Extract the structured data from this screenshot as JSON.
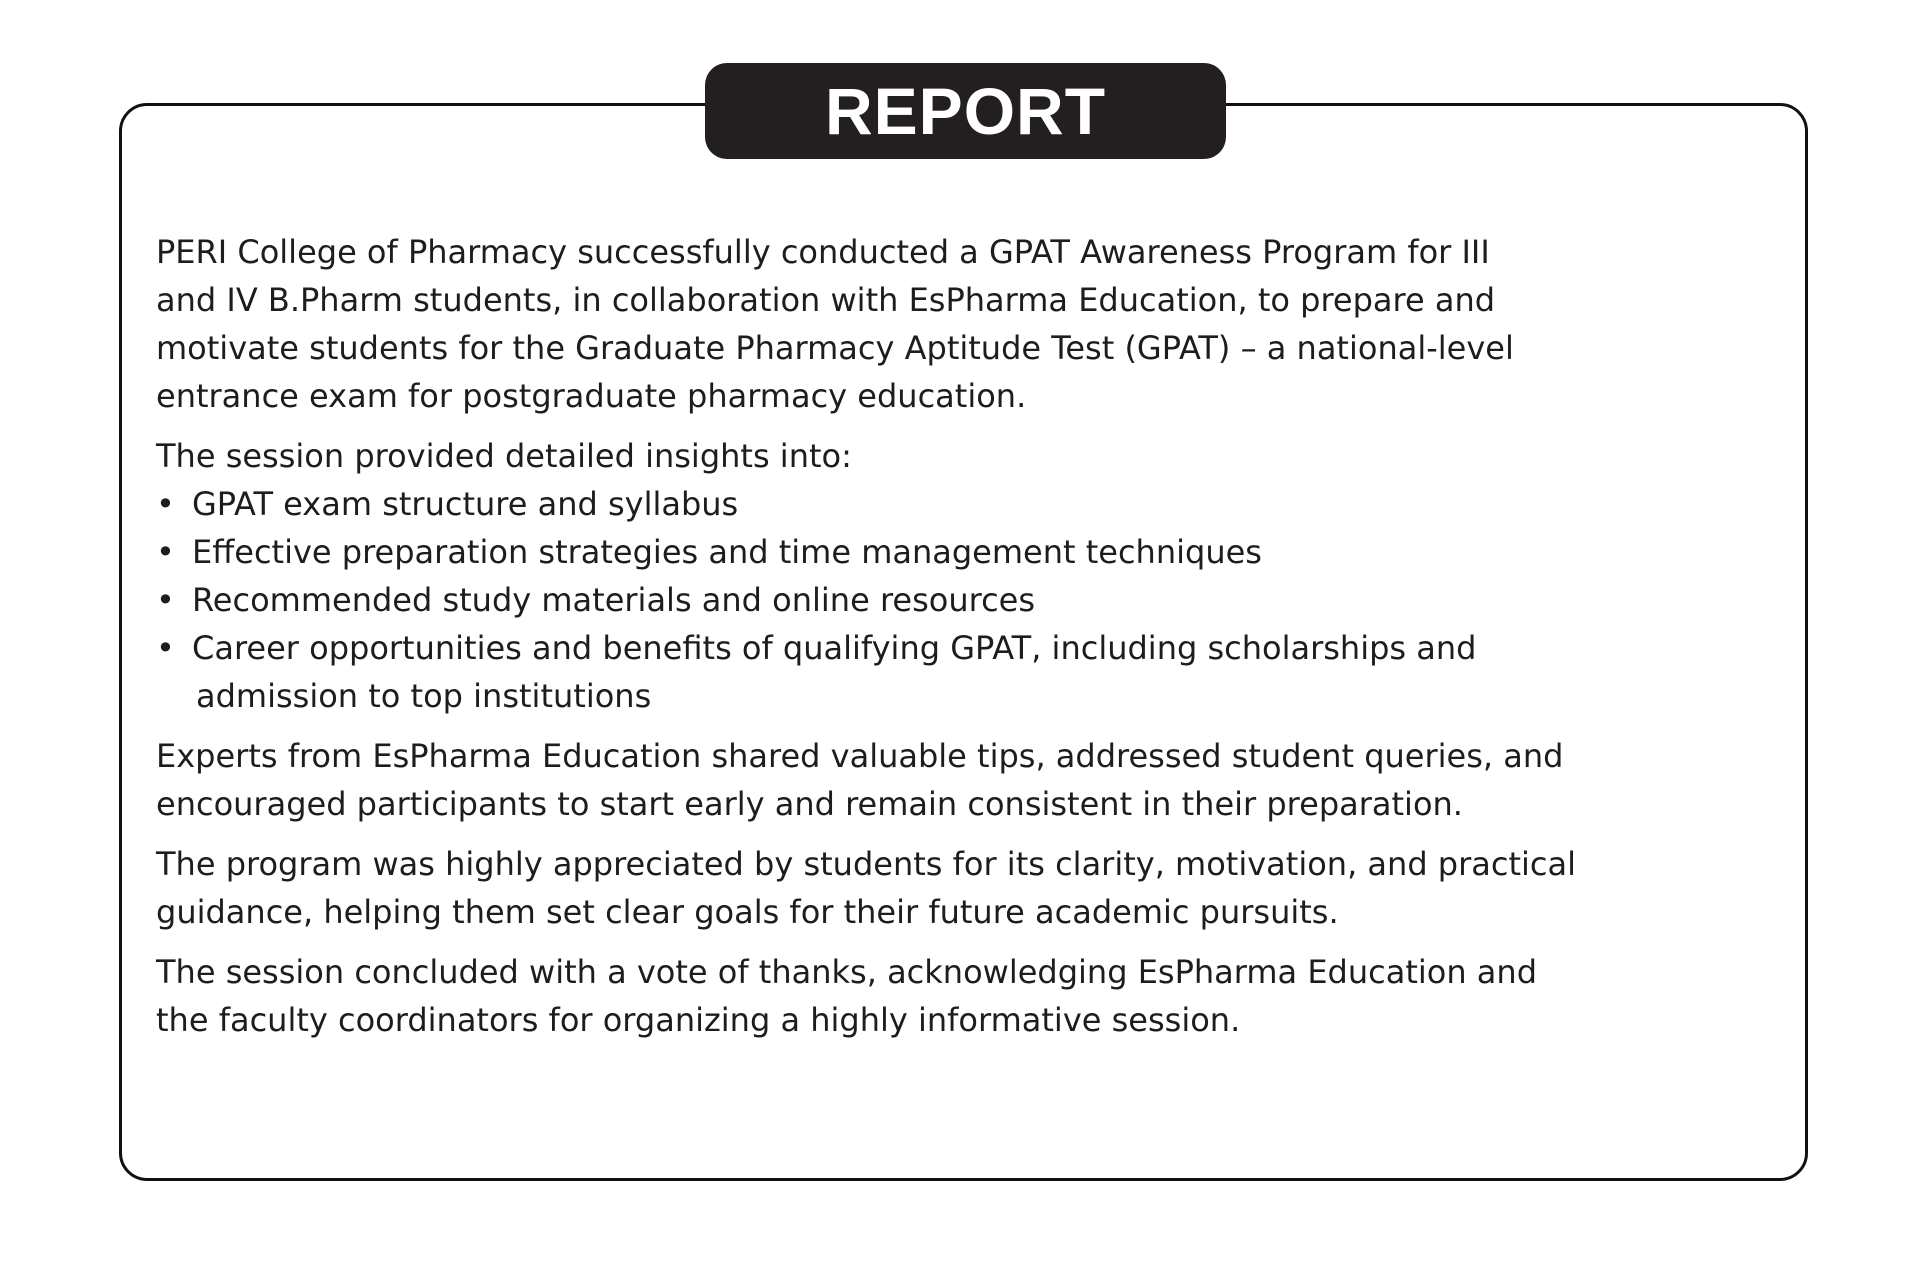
{
  "header": {
    "title": "REPORT"
  },
  "body": {
    "intro_lines": [
      "PERI College of Pharmacy successfully conducted a GPAT Awareness Program for III",
      "and IV B.Pharm students, in collaboration with EsPharma Education, to prepare and",
      "motivate students for the Graduate Pharmacy Aptitude Test (GPAT) – a national-level",
      "entrance exam for postgraduate pharmacy education."
    ],
    "insights_heading": "The session provided detailed insights into:",
    "bullets": [
      {
        "text": "GPAT exam structure and syllabus"
      },
      {
        "text": "Effective preparation strategies and time management techniques"
      },
      {
        "text": "Recommended study materials and online resources"
      },
      {
        "text": "Career opportunities and benefits of qualifying GPAT, including scholarships and",
        "continuation": "admission to top institutions"
      }
    ],
    "bullet_char": "•",
    "experts_lines": [
      "Experts from EsPharma Education shared valuable tips, addressed student queries, and",
      "encouraged participants to start early and remain consistent in their preparation."
    ],
    "appreciation_lines": [
      "The program was highly appreciated by students for its clarity, motivation, and practical",
      "guidance, helping them set clear goals for their future academic pursuits."
    ],
    "conclusion_lines": [
      "The session concluded with a vote of thanks, acknowledging EsPharma Education and",
      "the faculty coordinators for organizing a highly informative session."
    ]
  }
}
